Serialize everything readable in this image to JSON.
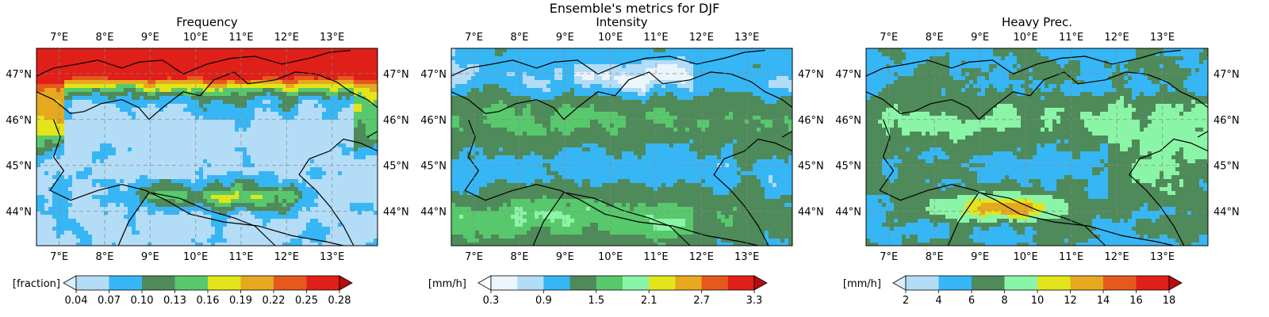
{
  "figure": {
    "suptitle": "Ensemble's metrics for DJF"
  },
  "chart_data": [
    {
      "type": "heatmap",
      "title": "Frequency",
      "lon_ticks": [
        "7°E",
        "8°E",
        "9°E",
        "10°E",
        "11°E",
        "12°E",
        "13°E"
      ],
      "lat_ticks": [
        "47°N",
        "46°N",
        "45°N",
        "44°N"
      ],
      "lon_values": [
        7,
        8,
        9,
        10,
        11,
        12,
        13
      ],
      "lat_values": [
        47,
        46,
        45,
        44
      ],
      "lon_range": [
        6.5,
        14.0
      ],
      "lat_range": [
        43.25,
        47.55
      ],
      "grid": true,
      "colorbar": {
        "label": "[fraction]",
        "ticks": [
          "0.04",
          "0.07",
          "0.10",
          "0.13",
          "0.16",
          "0.19",
          "0.22",
          "0.25",
          "0.28"
        ],
        "colors": [
          "#b3dcf7",
          "#37b6f5",
          "#4f8a5a",
          "#58c86c",
          "#e3e51a",
          "#e6a81f",
          "#e5591c",
          "#e01f18"
        ],
        "extend_low": "#d8eefb",
        "extend_high": "#b80d0d"
      }
    },
    {
      "type": "heatmap",
      "title": "Intensity",
      "lon_ticks": [
        "7°E",
        "8°E",
        "9°E",
        "10°E",
        "11°E",
        "12°E",
        "13°E"
      ],
      "lat_ticks": [
        "47°N",
        "46°N",
        "45°N",
        "44°N"
      ],
      "lon_values": [
        7,
        8,
        9,
        10,
        11,
        12,
        13
      ],
      "lat_values": [
        47,
        46,
        45,
        44
      ],
      "lon_range": [
        6.5,
        14.0
      ],
      "lat_range": [
        43.25,
        47.55
      ],
      "grid": true,
      "colorbar": {
        "label": "[mm/h]",
        "ticks": [
          "0.3",
          "0.9",
          "1.5",
          "2.1",
          "2.7",
          "3.3"
        ],
        "colors": [
          "#eaf5fc",
          "#b3dcf7",
          "#37b6f5",
          "#4f8a5a",
          "#58c86c",
          "#8af5a6",
          "#e3e51a",
          "#e6a81f",
          "#e5591c",
          "#e01f18"
        ],
        "extend_low": "#ffffff",
        "extend_high": "#b80d0d"
      }
    },
    {
      "type": "heatmap",
      "title": "Heavy Prec.",
      "lon_ticks": [
        "7°E",
        "8°E",
        "9°E",
        "10°E",
        "11°E",
        "12°E",
        "13°E"
      ],
      "lat_ticks": [
        "47°N",
        "46°N",
        "45°N",
        "44°N"
      ],
      "lon_values": [
        7,
        8,
        9,
        10,
        11,
        12,
        13
      ],
      "lat_values": [
        47,
        46,
        45,
        44
      ],
      "lon_range": [
        6.5,
        14.0
      ],
      "lat_range": [
        43.25,
        47.55
      ],
      "grid": true,
      "colorbar": {
        "label": "[mm/h]",
        "ticks": [
          "2",
          "4",
          "6",
          "8",
          "10",
          "12",
          "14",
          "16",
          "18"
        ],
        "colors": [
          "#b3dcf7",
          "#37b6f5",
          "#4f8a5a",
          "#8af5a6",
          "#e3e51a",
          "#e6a81f",
          "#e5591c",
          "#e01f18"
        ],
        "extend_low": "#d8eefb",
        "extend_high": "#b80d0d"
      }
    }
  ]
}
